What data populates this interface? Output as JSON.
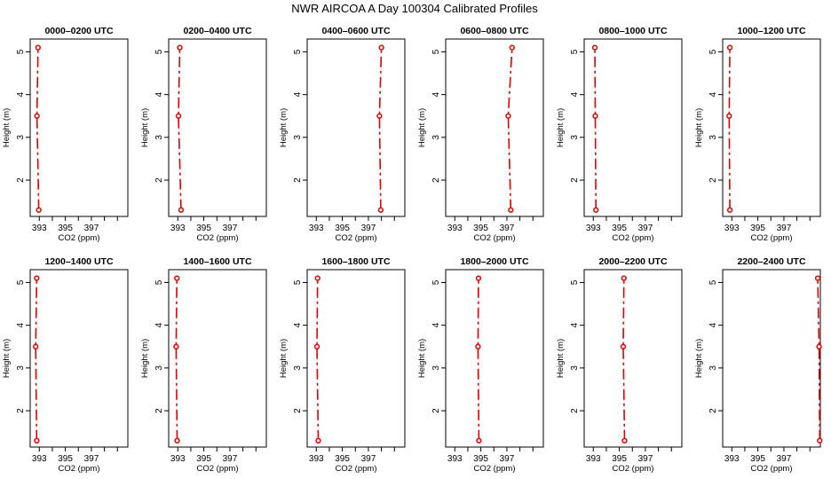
{
  "title": "NWR AIRCOA A  Day 100304  Calibrated Profiles",
  "colors": {
    "profile": "#dd0000",
    "axis": "#000000"
  },
  "chart_data": [
    {
      "type": "line",
      "title": "0000–0200 UTC",
      "xlabel": "CO2 (ppm)",
      "ylabel": "Height (m)",
      "xlim": [
        392.3,
        399.8
      ],
      "ylim": [
        1.15,
        5.3
      ],
      "xticks": [
        393,
        395,
        397
      ],
      "yticks": [
        2,
        3,
        4,
        5
      ],
      "heights": [
        1.3,
        3.5,
        5.1
      ],
      "values": [
        392.96,
        392.82,
        392.9
      ]
    },
    {
      "type": "line",
      "title": "0200–0400 UTC",
      "xlabel": "CO2 (ppm)",
      "ylabel": "Height (m)",
      "xlim": [
        392.3,
        399.8
      ],
      "ylim": [
        1.15,
        5.3
      ],
      "xticks": [
        393,
        395,
        397
      ],
      "yticks": [
        2,
        3,
        4,
        5
      ],
      "heights": [
        1.3,
        3.5,
        5.1
      ],
      "values": [
        393.25,
        393.05,
        393.15
      ]
    },
    {
      "type": "line",
      "title": "0400–0600 UTC",
      "xlabel": "CO2 (ppm)",
      "ylabel": "Height (m)",
      "xlim": [
        392.3,
        399.8
      ],
      "ylim": [
        1.15,
        5.3
      ],
      "xticks": [
        393,
        395,
        397
      ],
      "yticks": [
        2,
        3,
        4,
        5
      ],
      "heights": [
        1.3,
        3.5,
        5.1
      ],
      "values": [
        397.95,
        397.85,
        398.0
      ]
    },
    {
      "type": "line",
      "title": "0600–0800 UTC",
      "xlabel": "CO2 (ppm)",
      "ylabel": "Height (m)",
      "xlim": [
        392.3,
        399.8
      ],
      "ylim": [
        1.15,
        5.3
      ],
      "xticks": [
        393,
        395,
        397
      ],
      "yticks": [
        2,
        3,
        4,
        5
      ],
      "heights": [
        1.3,
        3.5,
        5.1
      ],
      "values": [
        397.3,
        397.1,
        397.4
      ]
    },
    {
      "type": "line",
      "title": "0800–1000 UTC",
      "xlabel": "CO2 (ppm)",
      "ylabel": "Height (m)",
      "xlim": [
        392.3,
        399.8
      ],
      "ylim": [
        1.15,
        5.3
      ],
      "xticks": [
        393,
        395,
        397
      ],
      "yticks": [
        2,
        3,
        4,
        5
      ],
      "heights": [
        1.3,
        3.5,
        5.1
      ],
      "values": [
        393.2,
        393.15,
        393.12
      ]
    },
    {
      "type": "line",
      "title": "1000–1200 UTC",
      "xlabel": "CO2 (ppm)",
      "ylabel": "Height (m)",
      "xlim": [
        392.3,
        399.8
      ],
      "ylim": [
        1.15,
        5.3
      ],
      "xticks": [
        393,
        395,
        397
      ],
      "yticks": [
        2,
        3,
        4,
        5
      ],
      "heights": [
        1.3,
        3.5,
        5.1
      ],
      "values": [
        392.85,
        392.8,
        392.85
      ]
    },
    {
      "type": "line",
      "title": "1200–1400 UTC",
      "xlabel": "CO2 (ppm)",
      "ylabel": "Height (m)",
      "xlim": [
        392.3,
        399.8
      ],
      "ylim": [
        1.15,
        5.3
      ],
      "xticks": [
        393,
        395,
        397
      ],
      "yticks": [
        2,
        3,
        4,
        5
      ],
      "heights": [
        1.3,
        3.5,
        5.1
      ],
      "values": [
        392.8,
        392.72,
        392.8
      ]
    },
    {
      "type": "line",
      "title": "1400–1600 UTC",
      "xlabel": "CO2 (ppm)",
      "ylabel": "Height (m)",
      "xlim": [
        392.3,
        399.8
      ],
      "ylim": [
        1.15,
        5.3
      ],
      "xticks": [
        393,
        395,
        397
      ],
      "yticks": [
        2,
        3,
        4,
        5
      ],
      "heights": [
        1.3,
        3.5,
        5.1
      ],
      "values": [
        392.95,
        392.87,
        392.93
      ]
    },
    {
      "type": "line",
      "title": "1600–1800 UTC",
      "xlabel": "CO2 (ppm)",
      "ylabel": "Height (m)",
      "xlim": [
        392.3,
        399.8
      ],
      "ylim": [
        1.15,
        5.3
      ],
      "xticks": [
        393,
        395,
        397
      ],
      "yticks": [
        2,
        3,
        4,
        5
      ],
      "heights": [
        1.3,
        3.5,
        5.1
      ],
      "values": [
        393.15,
        393.05,
        393.1
      ]
    },
    {
      "type": "line",
      "title": "1800–2000 UTC",
      "xlabel": "CO2 (ppm)",
      "ylabel": "Height (m)",
      "xlim": [
        392.3,
        399.8
      ],
      "ylim": [
        1.15,
        5.3
      ],
      "xticks": [
        393,
        395,
        397
      ],
      "yticks": [
        2,
        3,
        4,
        5
      ],
      "heights": [
        1.3,
        3.5,
        5.1
      ],
      "values": [
        394.85,
        394.78,
        394.82
      ]
    },
    {
      "type": "line",
      "title": "2000–2200 UTC",
      "xlabel": "CO2 (ppm)",
      "ylabel": "Height (m)",
      "xlim": [
        392.3,
        399.8
      ],
      "ylim": [
        1.15,
        5.3
      ],
      "xticks": [
        393,
        395,
        397
      ],
      "yticks": [
        2,
        3,
        4,
        5
      ],
      "heights": [
        1.3,
        3.5,
        5.1
      ],
      "values": [
        395.4,
        395.3,
        395.35
      ]
    },
    {
      "type": "line",
      "title": "2200–2400 UTC",
      "xlabel": "CO2 (ppm)",
      "ylabel": "Height (m)",
      "xlim": [
        392.3,
        399.8
      ],
      "ylim": [
        1.15,
        5.3
      ],
      "xticks": [
        393,
        395,
        397
      ],
      "yticks": [
        2,
        3,
        4,
        5
      ],
      "heights": [
        1.3,
        3.5,
        5.1
      ],
      "values": [
        399.75,
        399.7,
        399.6
      ]
    }
  ]
}
